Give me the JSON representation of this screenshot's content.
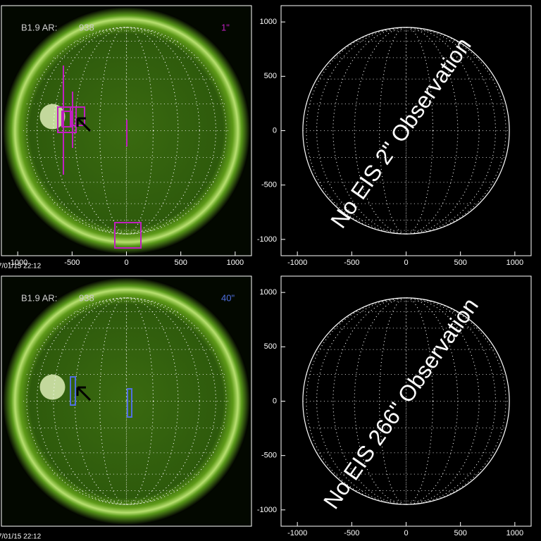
{
  "panels": [
    {
      "label": "B1.9 AR:",
      "region": "938",
      "slit": "1\"",
      "slit_color": "#c020c0",
      "xlim": [
        -1150,
        1150
      ],
      "xticks": [
        -1000,
        -500,
        0,
        500,
        1000
      ],
      "timestamp": "7/01/15 22:12"
    },
    {
      "message": "No EIS 2\" Observation",
      "xlim": [
        -1150,
        1150
      ],
      "ylim": [
        -1150,
        1150
      ],
      "xticks": [
        -1000,
        -500,
        0,
        500,
        1000
      ],
      "yticks": [
        -1000,
        -500,
        0,
        500,
        1000
      ]
    },
    {
      "label": "B1.9 AR:",
      "region": "938",
      "slit": "40\"",
      "slit_color": "#5070e0",
      "timestamp": "7/01/15 22:12"
    },
    {
      "message": "No EIS 266\" Observation",
      "xlim": [
        -1150,
        1150
      ],
      "ylim": [
        -1150,
        1150
      ],
      "xticks": [
        -1000,
        -500,
        0,
        500,
        1000
      ],
      "yticks": [
        -1000,
        -500,
        0,
        500,
        1000
      ]
    }
  ]
}
